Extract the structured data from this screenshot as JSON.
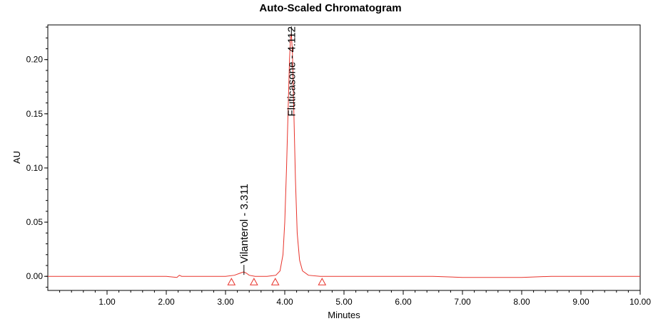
{
  "chart_data": {
    "type": "line",
    "title": "Auto-Scaled Chromatogram",
    "xlabel": "Minutes",
    "ylabel": "AU",
    "xlim": [
      0.0,
      10.0
    ],
    "ylim": [
      -0.013,
      0.232
    ],
    "x_ticks": [
      1.0,
      2.0,
      3.0,
      4.0,
      5.0,
      6.0,
      7.0,
      8.0,
      9.0,
      10.0
    ],
    "x_tick_labels": [
      "1.00",
      "2.00",
      "3.00",
      "4.00",
      "5.00",
      "6.00",
      "7.00",
      "8.00",
      "9.00",
      "10.00"
    ],
    "y_ticks": [
      0.0,
      0.05,
      0.1,
      0.15,
      0.2
    ],
    "y_tick_labels": [
      "0.00",
      "0.05",
      "0.10",
      "0.15",
      "0.20"
    ],
    "grid": false,
    "series": [
      {
        "color": "#e8332b",
        "x": [
          0.0,
          0.5,
          1.0,
          1.5,
          2.0,
          2.18,
          2.22,
          2.26,
          2.3,
          2.6,
          3.0,
          3.15,
          3.25,
          3.3,
          3.311,
          3.35,
          3.4,
          3.5,
          3.7,
          3.85,
          3.92,
          3.97,
          4.0,
          4.03,
          4.06,
          4.08,
          4.1,
          4.112,
          4.13,
          4.15,
          4.18,
          4.21,
          4.25,
          4.3,
          4.4,
          4.6,
          5.0,
          5.5,
          6.0,
          6.5,
          7.0,
          7.5,
          8.0,
          8.5,
          9.0,
          9.5,
          10.0
        ],
        "y": [
          0.0,
          0.0,
          0.0,
          0.0,
          0.0,
          -0.001,
          0.001,
          0.0,
          0.0,
          0.0,
          0.0,
          0.001,
          0.003,
          0.004,
          0.004,
          0.003,
          0.001,
          0.0,
          0.0,
          0.001,
          0.005,
          0.02,
          0.05,
          0.1,
          0.16,
          0.2,
          0.222,
          0.224,
          0.205,
          0.16,
          0.09,
          0.04,
          0.015,
          0.005,
          0.001,
          0.0,
          0.0,
          0.0,
          0.0,
          0.0,
          -0.001,
          -0.001,
          -0.001,
          0.0,
          0.0,
          0.0,
          0.0
        ]
      }
    ],
    "peak_labels": [
      {
        "text": "Vilanterol - 3.311",
        "x": 3.311,
        "y": 0.004
      },
      {
        "text": "Fluticasone - 4.112",
        "x": 4.112,
        "y": 0.224
      }
    ],
    "integration_markers_x": [
      3.1,
      3.48,
      3.84,
      4.63
    ]
  }
}
